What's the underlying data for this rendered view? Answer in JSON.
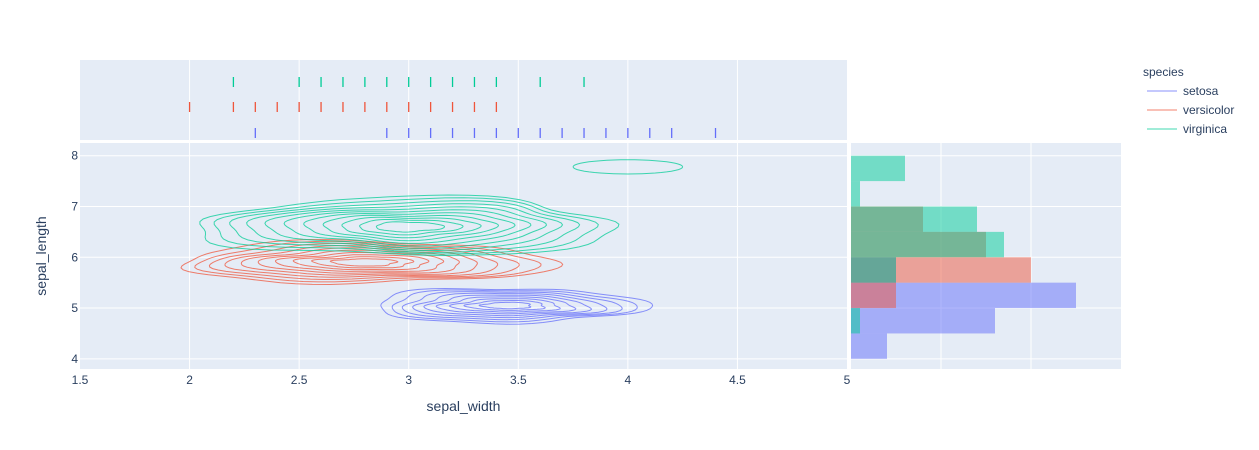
{
  "chart_data": {
    "type": "scatter",
    "subtype": "density-contour with marginal rug (top) and histogram (right)",
    "xlabel": "sepal_width",
    "ylabel": "sepal_length",
    "xlim": [
      1.5,
      5
    ],
    "ylim": [
      3.8,
      8.25
    ],
    "x_ticks": [
      "1.5",
      "2",
      "2.5",
      "3",
      "3.5",
      "4",
      "4.5",
      "5"
    ],
    "y_ticks": [
      "4",
      "5",
      "6",
      "7",
      "8"
    ],
    "grid": true,
    "legend": {
      "title": "species",
      "position": "top-right",
      "entries": [
        "setosa",
        "versicolor",
        "virginica"
      ]
    },
    "series": [
      {
        "name": "setosa",
        "color": "#636efa",
        "rug_sepal_width": [
          2.3,
          2.9,
          3.0,
          3.1,
          3.2,
          3.3,
          3.4,
          3.5,
          3.6,
          3.7,
          3.8,
          3.9,
          4.0,
          4.1,
          4.2,
          4.4
        ],
        "contour_center": [
          3.45,
          5.05
        ],
        "histogram_sepal_length": {
          "bin_width": 0.5,
          "bins": [
            {
              "from": 4.0,
              "to": 4.5,
              "count": 4
            },
            {
              "from": 4.5,
              "to": 5.0,
              "count": 16
            },
            {
              "from": 5.0,
              "to": 5.5,
              "count": 25
            },
            {
              "from": 5.5,
              "to": 6.0,
              "count": 5
            }
          ]
        }
      },
      {
        "name": "versicolor",
        "color": "#ef553b",
        "rug_sepal_width": [
          2.0,
          2.2,
          2.3,
          2.4,
          2.5,
          2.6,
          2.7,
          2.8,
          2.9,
          3.0,
          3.1,
          3.2,
          3.3,
          3.4
        ],
        "contour_center": [
          2.8,
          5.9
        ],
        "histogram_sepal_length": {
          "bin_width": 0.5,
          "bins": [
            {
              "from": 5.0,
              "to": 5.5,
              "count": 5
            },
            {
              "from": 5.5,
              "to": 6.0,
              "count": 20
            },
            {
              "from": 6.0,
              "to": 6.5,
              "count": 15
            },
            {
              "from": 6.5,
              "to": 7.0,
              "count": 8
            },
            {
              "from": 7.0,
              "to": 7.5,
              "count": 0
            }
          ]
        }
      },
      {
        "name": "virginica",
        "color": "#00cc96",
        "rug_sepal_width": [
          2.2,
          2.5,
          2.6,
          2.7,
          2.8,
          2.9,
          3.0,
          3.1,
          3.2,
          3.3,
          3.4,
          3.6,
          3.8
        ],
        "contour_center": [
          3.0,
          6.6
        ],
        "histogram_sepal_length": {
          "bin_width": 0.5,
          "bins": [
            {
              "from": 4.5,
              "to": 5.0,
              "count": 1
            },
            {
              "from": 5.0,
              "to": 5.5,
              "count": 0
            },
            {
              "from": 5.5,
              "to": 6.0,
              "count": 5
            },
            {
              "from": 6.0,
              "to": 6.5,
              "count": 17
            },
            {
              "from": 6.5,
              "to": 7.0,
              "count": 14
            },
            {
              "from": 7.0,
              "to": 7.5,
              "count": 1
            },
            {
              "from": 7.5,
              "to": 8.0,
              "count": 6
            }
          ]
        }
      }
    ]
  }
}
